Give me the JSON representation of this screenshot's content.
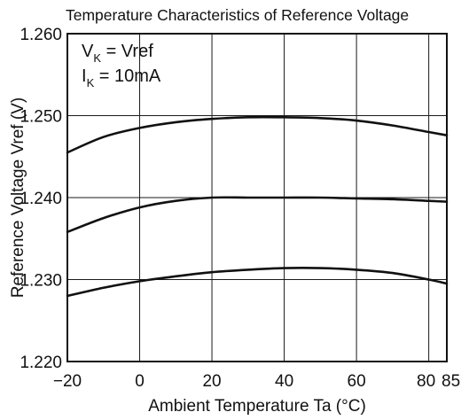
{
  "chart_data": {
    "type": "line",
    "title": "Temperature Characteristics of Reference Voltage",
    "xlabel": "Ambient Temperature  Ta (°C)",
    "ylabel": "Reference Voltage  Vref (V)",
    "xlim": [
      -20,
      85
    ],
    "ylim": [
      1.22,
      1.26
    ],
    "x_ticks": [
      -20,
      0,
      20,
      40,
      60,
      80,
      85
    ],
    "x_tick_labels": [
      "−20",
      "0",
      "20",
      "40",
      "60",
      "80",
      "85"
    ],
    "y_ticks": [
      1.22,
      1.23,
      1.24,
      1.25,
      1.26
    ],
    "y_tick_labels": [
      "1.220",
      "1.230",
      "1.240",
      "1.250",
      "1.260"
    ],
    "grid": true,
    "conditions": {
      "line1": {
        "main": "V",
        "sub": "K",
        "rest": " = Vref"
      },
      "line2": {
        "main": "I",
        "sub": "K",
        "rest": " = 10mA"
      }
    },
    "series": [
      {
        "x": [
          -20,
          -10,
          0,
          10,
          20,
          30,
          40,
          50,
          60,
          70,
          80,
          85
        ],
        "values": [
          1.2455,
          1.2474,
          1.2485,
          1.2492,
          1.2496,
          1.2498,
          1.2498,
          1.2497,
          1.2494,
          1.2488,
          1.248,
          1.2476
        ]
      },
      {
        "x": [
          -20,
          -10,
          0,
          10,
          20,
          30,
          40,
          50,
          60,
          70,
          80,
          85
        ],
        "values": [
          1.2358,
          1.2375,
          1.2388,
          1.2396,
          1.24,
          1.24,
          1.24,
          1.24,
          1.2399,
          1.2398,
          1.2396,
          1.2395
        ]
      },
      {
        "x": [
          -20,
          -10,
          0,
          10,
          20,
          30,
          40,
          50,
          60,
          70,
          80,
          85
        ],
        "values": [
          1.228,
          1.229,
          1.2298,
          1.2304,
          1.2309,
          1.2312,
          1.2314,
          1.2314,
          1.2312,
          1.2308,
          1.23,
          1.2295
        ]
      }
    ]
  }
}
